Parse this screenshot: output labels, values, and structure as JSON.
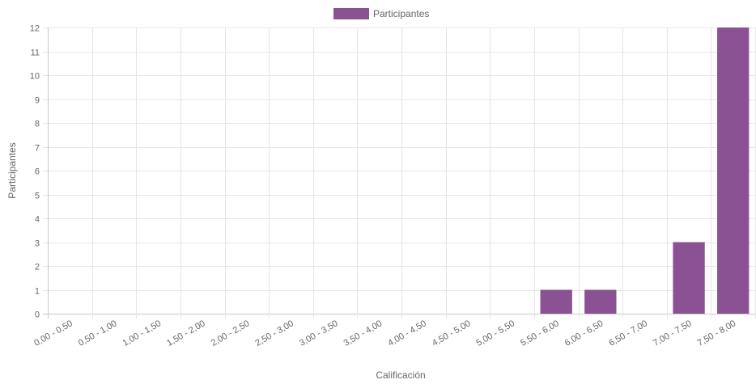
{
  "chart_data": {
    "type": "bar",
    "categories": [
      "0,00 - 0,50",
      "0,50 - 1,00",
      "1,00 - 1,50",
      "1,50 - 2,00",
      "2,00 - 2,50",
      "2,50 - 3,00",
      "3,00 - 3,50",
      "3,50 - 4,00",
      "4,00 - 4,50",
      "4,50 - 5,00",
      "5,00 - 5,50",
      "5,50 - 6,00",
      "6,00 - 6,50",
      "6,50 - 7,00",
      "7,00 - 7,50",
      "7,50 - 8,00"
    ],
    "series": [
      {
        "name": "Participantes",
        "values": [
          0,
          0,
          0,
          0,
          0,
          0,
          0,
          0,
          0,
          0,
          0,
          1,
          1,
          0,
          3,
          12
        ]
      }
    ],
    "xlabel": "Calificación",
    "ylabel": "Participantes",
    "ylim": [
      0,
      12
    ],
    "yticks": [
      "0",
      "1",
      "2",
      "3",
      "4",
      "5",
      "6",
      "7",
      "8",
      "9",
      "10",
      "11",
      "12"
    ],
    "grid": true,
    "legend_position": "top",
    "colors": {
      "bar_fill": "#8a5293",
      "grid": "#e5e5e5",
      "axis": "#c8c8c8",
      "text": "#666666"
    }
  }
}
